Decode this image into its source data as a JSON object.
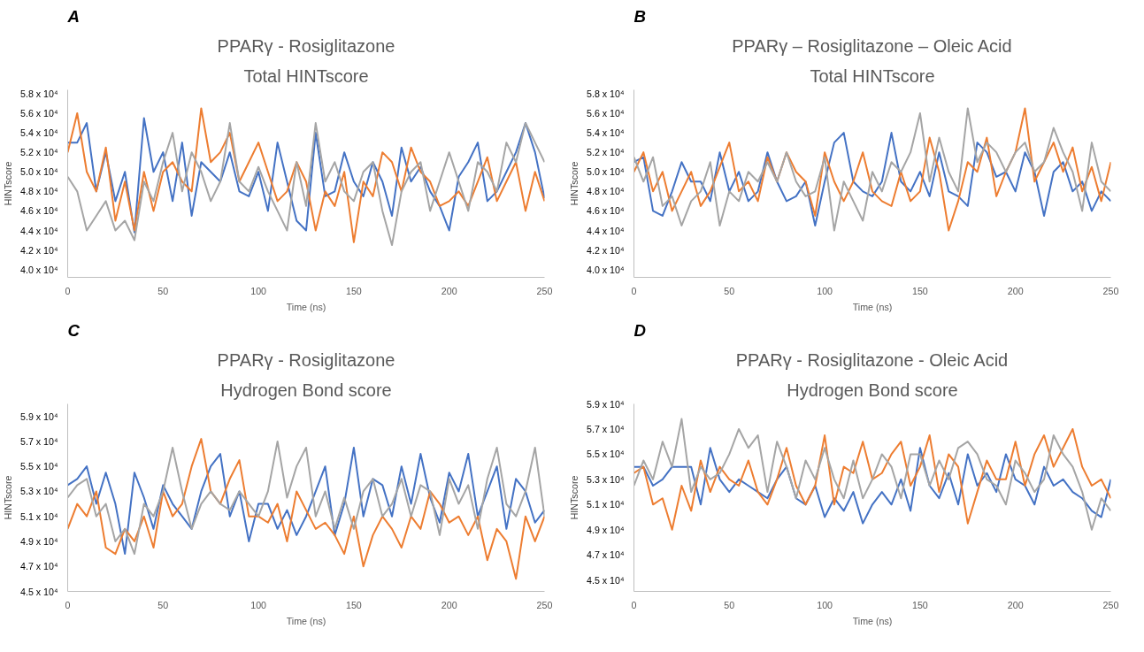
{
  "chart_data": [
    {
      "type": "line",
      "title": "PPARγ - Rosiglitazone",
      "subtitle": "Total HINTscore",
      "annotations": [
        "A"
      ],
      "xlabel": "Time (ns)",
      "ylabel": "HINTscore",
      "xlim": [
        0,
        250
      ],
      "xticks": [
        0,
        50,
        100,
        150,
        200,
        250
      ],
      "ylim": [
        39200,
        58400
      ],
      "yticks": [
        {
          "value": 40000,
          "label": "4.0 x 10⁴"
        },
        {
          "value": 42000,
          "label": "4.2 x 10⁴"
        },
        {
          "value": 44000,
          "label": "4.4 x 10⁴"
        },
        {
          "value": 46000,
          "label": "4.6 x 10⁴"
        },
        {
          "value": 48000,
          "label": "4.8 x 10⁴"
        },
        {
          "value": 50000,
          "label": "5.0 x 10⁴"
        },
        {
          "value": 52000,
          "label": "5.2 x 10⁴"
        },
        {
          "value": 54000,
          "label": "5.4 x 10⁴"
        },
        {
          "value": 56000,
          "label": "5.6 x 10⁴"
        },
        {
          "value": 58000,
          "label": "5.8 x 10⁴"
        }
      ],
      "grid": false,
      "line_style": "solid",
      "marker": "none",
      "x": [
        0,
        5,
        10,
        15,
        20,
        25,
        30,
        35,
        40,
        45,
        50,
        55,
        60,
        65,
        70,
        75,
        80,
        85,
        90,
        95,
        100,
        105,
        110,
        115,
        120,
        125,
        130,
        135,
        140,
        145,
        150,
        155,
        160,
        165,
        170,
        175,
        180,
        185,
        190,
        195,
        200,
        205,
        210,
        215,
        220,
        225,
        230,
        235,
        240,
        245,
        250
      ],
      "series": [
        {
          "color": "#4472c4",
          "values": [
            53000,
            53000,
            55000,
            48000,
            52000,
            47000,
            50000,
            43800,
            55500,
            50000,
            52000,
            47000,
            53000,
            45500,
            51000,
            50000,
            49000,
            52000,
            48000,
            47500,
            50000,
            46000,
            53000,
            49000,
            45000,
            44000,
            54000,
            47500,
            48000,
            52000,
            49000,
            47500,
            51000,
            49000,
            45500,
            52500,
            49000,
            50500,
            48000,
            46500,
            44000,
            49500,
            51000,
            53000,
            47000,
            48000,
            50000,
            52000,
            55000,
            52000,
            47300
          ]
        },
        {
          "color": "#ed7d31",
          "values": [
            52000,
            56000,
            50000,
            48000,
            52500,
            45000,
            49000,
            44000,
            50000,
            46000,
            50000,
            51000,
            49000,
            48000,
            56500,
            51000,
            52000,
            54000,
            49000,
            51000,
            53000,
            50000,
            47000,
            48000,
            51000,
            49000,
            44000,
            48000,
            46500,
            50000,
            42800,
            49000,
            47500,
            52000,
            51000,
            48000,
            52500,
            50000,
            49000,
            46500,
            47000,
            48000,
            46500,
            49000,
            51500,
            47000,
            49000,
            51000,
            46000,
            50000,
            47000
          ]
        },
        {
          "color": "#a5a5a5",
          "values": [
            49500,
            48000,
            44000,
            45500,
            47000,
            44000,
            45000,
            43000,
            49000,
            47000,
            51000,
            54000,
            48000,
            52000,
            50000,
            47000,
            49000,
            55000,
            49000,
            48000,
            50500,
            48000,
            46000,
            44000,
            51000,
            46500,
            55000,
            49000,
            51000,
            48000,
            47000,
            50000,
            51000,
            46000,
            42500,
            48000,
            50000,
            51000,
            46000,
            49000,
            52000,
            49000,
            46000,
            51000,
            50000,
            48000,
            53000,
            51000,
            55000,
            53000,
            51000
          ]
        }
      ]
    },
    {
      "type": "line",
      "title": "PPARγ – Rosiglitazone – Oleic Acid",
      "subtitle": "Total HINTscore",
      "annotations": [
        "B"
      ],
      "xlabel": "Time (ns)",
      "ylabel": "HINTscore",
      "xlim": [
        0,
        250
      ],
      "xticks": [
        0,
        50,
        100,
        150,
        200,
        250
      ],
      "ylim": [
        39200,
        58400
      ],
      "yticks": [
        {
          "value": 40000,
          "label": "4.0 x 10⁴"
        },
        {
          "value": 42000,
          "label": "4.2 x 10⁴"
        },
        {
          "value": 44000,
          "label": "4.4 x 10⁴"
        },
        {
          "value": 46000,
          "label": "4.6 x 10⁴"
        },
        {
          "value": 48000,
          "label": "4.8 x 10⁴"
        },
        {
          "value": 50000,
          "label": "5.0 x 10⁴"
        },
        {
          "value": 52000,
          "label": "5.2 x 10⁴"
        },
        {
          "value": 54000,
          "label": "5.4 x 10⁴"
        },
        {
          "value": 56000,
          "label": "5.6 x 10⁴"
        },
        {
          "value": 58000,
          "label": "5.8 x 10⁴"
        }
      ],
      "grid": false,
      "line_style": "solid",
      "marker": "none",
      "x": [
        0,
        5,
        10,
        15,
        20,
        25,
        30,
        35,
        40,
        45,
        50,
        55,
        60,
        65,
        70,
        75,
        80,
        85,
        90,
        95,
        100,
        105,
        110,
        115,
        120,
        125,
        130,
        135,
        140,
        145,
        150,
        155,
        160,
        165,
        170,
        175,
        180,
        185,
        190,
        195,
        200,
        205,
        210,
        215,
        220,
        225,
        230,
        235,
        240,
        245,
        250
      ],
      "series": [
        {
          "color": "#4472c4",
          "values": [
            51000,
            51500,
            46000,
            45500,
            48000,
            51000,
            49000,
            49000,
            47000,
            52000,
            48000,
            50000,
            47000,
            48000,
            52000,
            49000,
            47000,
            47500,
            49000,
            44500,
            49000,
            53000,
            54000,
            49000,
            48000,
            47500,
            49000,
            54000,
            49000,
            48000,
            50000,
            47500,
            52000,
            48000,
            47500,
            46500,
            53000,
            52000,
            49500,
            50000,
            48000,
            52000,
            50000,
            45500,
            50000,
            51000,
            48000,
            49000,
            46000,
            48000,
            47000
          ]
        },
        {
          "color": "#ed7d31",
          "values": [
            50000,
            52000,
            48000,
            50000,
            46000,
            48000,
            50000,
            46500,
            48000,
            50500,
            53000,
            48000,
            49000,
            47000,
            51500,
            49000,
            52000,
            50000,
            49000,
            45500,
            52000,
            49000,
            47000,
            49000,
            52000,
            48000,
            47000,
            46500,
            50000,
            47000,
            48000,
            53500,
            50000,
            44000,
            47000,
            51000,
            50000,
            53500,
            47500,
            50000,
            52000,
            56500,
            49000,
            51000,
            53000,
            50000,
            52500,
            48000,
            50500,
            47000,
            51000
          ]
        },
        {
          "color": "#a5a5a5",
          "values": [
            51500,
            49000,
            51500,
            46500,
            47500,
            44500,
            47000,
            48000,
            51000,
            44500,
            48000,
            47000,
            50000,
            49000,
            51000,
            49000,
            52000,
            49000,
            47500,
            48000,
            51500,
            44000,
            49000,
            47000,
            45000,
            50000,
            48000,
            51000,
            50000,
            52000,
            56000,
            49000,
            53500,
            50000,
            48000,
            56500,
            51000,
            53000,
            52000,
            50000,
            52000,
            53000,
            50000,
            51000,
            54500,
            52000,
            50000,
            46000,
            53000,
            49000,
            48000
          ]
        }
      ]
    },
    {
      "type": "line",
      "title": "PPARγ - Rosiglitazone",
      "subtitle": "Hydrogen Bond score",
      "annotations": [
        "C"
      ],
      "xlabel": "Time (ns)",
      "ylabel": "HINTscore",
      "xlim": [
        0,
        250
      ],
      "xticks": [
        0,
        50,
        100,
        150,
        200,
        250
      ],
      "ylim": [
        45000,
        60000
      ],
      "yticks": [
        {
          "value": 45000,
          "label": "4.5 x 10⁴"
        },
        {
          "value": 47000,
          "label": "4.7 x 10⁴"
        },
        {
          "value": 49000,
          "label": "4.9 x 10⁴"
        },
        {
          "value": 51000,
          "label": "5.1 x 10⁴"
        },
        {
          "value": 53000,
          "label": "5.3 x 10⁴"
        },
        {
          "value": 55000,
          "label": "5.5 x 10⁴"
        },
        {
          "value": 57000,
          "label": "5.7 x 10⁴"
        },
        {
          "value": 59000,
          "label": "5.9 x 10⁴"
        }
      ],
      "grid": false,
      "line_style": "solid",
      "marker": "none",
      "x": [
        0,
        5,
        10,
        15,
        20,
        25,
        30,
        35,
        40,
        45,
        50,
        55,
        60,
        65,
        70,
        75,
        80,
        85,
        90,
        95,
        100,
        105,
        110,
        115,
        120,
        125,
        130,
        135,
        140,
        145,
        150,
        155,
        160,
        165,
        170,
        175,
        180,
        185,
        190,
        195,
        200,
        205,
        210,
        215,
        220,
        225,
        230,
        235,
        240,
        245,
        250
      ],
      "series": [
        {
          "color": "#4472c4",
          "values": [
            53500,
            54000,
            55000,
            52000,
            54500,
            52000,
            48000,
            54500,
            52500,
            50000,
            53500,
            52000,
            51000,
            50000,
            53000,
            55000,
            56000,
            51000,
            53000,
            49000,
            52000,
            52000,
            50000,
            51500,
            49500,
            51000,
            53000,
            55000,
            49500,
            52000,
            56500,
            51000,
            54000,
            53500,
            51000,
            55000,
            52000,
            56000,
            52500,
            50500,
            54500,
            53000,
            56000,
            51000,
            53000,
            55000,
            50000,
            54000,
            53000,
            50500,
            51500
          ]
        },
        {
          "color": "#ed7d31",
          "values": [
            50000,
            52000,
            51000,
            53000,
            48500,
            48000,
            50000,
            49000,
            51000,
            48500,
            53000,
            51000,
            52000,
            55000,
            57200,
            53000,
            52000,
            54000,
            55500,
            51000,
            51000,
            50500,
            52000,
            49000,
            53000,
            51500,
            50000,
            50500,
            49500,
            48000,
            51000,
            47000,
            49500,
            51000,
            50000,
            48500,
            51000,
            50000,
            53000,
            52000,
            50500,
            51000,
            49500,
            51000,
            47500,
            50000,
            49000,
            46000,
            51000,
            49000,
            51000
          ]
        },
        {
          "color": "#a5a5a5",
          "values": [
            52500,
            53500,
            54000,
            51000,
            52000,
            49000,
            50000,
            48000,
            52000,
            51000,
            53000,
            56500,
            53000,
            50000,
            52000,
            53000,
            52000,
            51500,
            53000,
            52000,
            51000,
            53000,
            57000,
            52500,
            55000,
            56500,
            51000,
            53000,
            50000,
            52500,
            50000,
            53000,
            54000,
            51000,
            52000,
            54000,
            51000,
            53500,
            53000,
            49500,
            54000,
            52000,
            53500,
            50000,
            54000,
            56500,
            52000,
            51000,
            53000,
            56500,
            51000
          ]
        }
      ]
    },
    {
      "type": "line",
      "title": "PPARγ - Rosiglitazone - Oleic Acid",
      "subtitle": "Hydrogen Bond score",
      "annotations": [
        "D"
      ],
      "xlabel": "Time (ns)",
      "ylabel": "HINTscore",
      "xlim": [
        0,
        250
      ],
      "xticks": [
        0,
        50,
        100,
        150,
        200,
        250
      ],
      "ylim": [
        44100,
        59000
      ],
      "yticks": [
        {
          "value": 45000,
          "label": "4.5 x 10⁴"
        },
        {
          "value": 47000,
          "label": "4.7 x 10⁴"
        },
        {
          "value": 49000,
          "label": "4.9 x 10⁴"
        },
        {
          "value": 51000,
          "label": "5.1 x 10⁴"
        },
        {
          "value": 53000,
          "label": "5.3 x 10⁴"
        },
        {
          "value": 55000,
          "label": "5.5 x 10⁴"
        },
        {
          "value": 57000,
          "label": "5.7 x 10⁴"
        },
        {
          "value": 59000,
          "label": "5.9 x 10⁴"
        }
      ],
      "grid": false,
      "line_style": "solid",
      "marker": "none",
      "x": [
        0,
        5,
        10,
        15,
        20,
        25,
        30,
        35,
        40,
        45,
        50,
        55,
        60,
        65,
        70,
        75,
        80,
        85,
        90,
        95,
        100,
        105,
        110,
        115,
        120,
        125,
        130,
        135,
        140,
        145,
        150,
        155,
        160,
        165,
        170,
        175,
        180,
        185,
        190,
        195,
        200,
        205,
        210,
        215,
        220,
        225,
        230,
        235,
        240,
        245,
        250
      ],
      "series": [
        {
          "color": "#4472c4",
          "values": [
            54000,
            54000,
            52500,
            53000,
            54000,
            54000,
            54000,
            51000,
            55500,
            53000,
            52000,
            53000,
            52500,
            52000,
            51500,
            53000,
            54000,
            51500,
            51000,
            52500,
            50000,
            51500,
            50500,
            52000,
            49500,
            51000,
            52000,
            51000,
            53000,
            50500,
            55500,
            52500,
            51500,
            53500,
            51000,
            55000,
            52500,
            53500,
            52000,
            55000,
            53000,
            52500,
            51000,
            54000,
            52500,
            53000,
            52000,
            51500,
            50500,
            50000,
            53000
          ]
        },
        {
          "color": "#ed7d31",
          "values": [
            53500,
            54000,
            51000,
            51500,
            49000,
            52500,
            50500,
            54500,
            52000,
            54000,
            53000,
            52500,
            54500,
            52000,
            51000,
            53000,
            55500,
            52500,
            51000,
            52500,
            56500,
            51000,
            54000,
            53500,
            56000,
            53000,
            53500,
            55000,
            56000,
            52500,
            54000,
            56500,
            52000,
            55000,
            54000,
            49500,
            52000,
            54500,
            53000,
            53000,
            56000,
            52500,
            55000,
            56500,
            54000,
            55500,
            57000,
            54000,
            52500,
            53000,
            51500
          ]
        },
        {
          "color": "#a5a5a5",
          "values": [
            52500,
            54500,
            53000,
            56000,
            54000,
            57800,
            52000,
            54000,
            53000,
            53500,
            55000,
            57000,
            55500,
            56500,
            52000,
            56000,
            54000,
            51500,
            54500,
            53000,
            55500,
            53000,
            51500,
            54500,
            51500,
            53000,
            55000,
            54000,
            51500,
            55000,
            55000,
            52500,
            54500,
            53000,
            55500,
            56000,
            55000,
            53000,
            52500,
            51000,
            54500,
            53500,
            52000,
            53000,
            56500,
            55000,
            54000,
            52000,
            49000,
            51500,
            50500
          ]
        }
      ]
    }
  ]
}
